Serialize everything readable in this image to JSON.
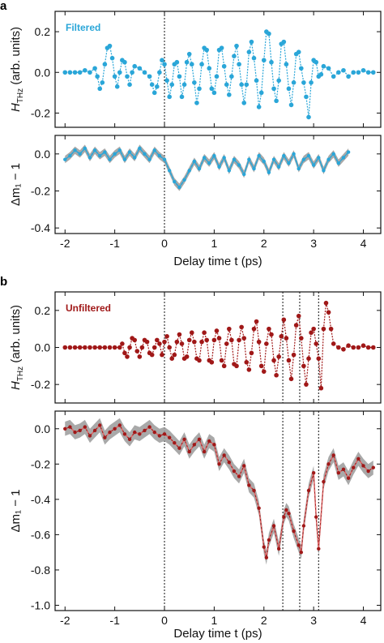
{
  "panel_labels": [
    "a",
    "b"
  ],
  "colors": {
    "filtered": "#2aa6d8",
    "unfiltered": "#a01818",
    "band": "#9a9a9a",
    "mid_line": "#e06a6a"
  },
  "chart_data": [
    {
      "type": "line",
      "panel": "a",
      "subplot": "top",
      "legend_text": "Filtered",
      "ylabel_main": "H",
      "ylabel_sub": "THz",
      "ylabel_rest": " (arb. units)",
      "xlim": [
        -2.2,
        4.35
      ],
      "ylim": [
        -0.27,
        0.3
      ],
      "yticks": [
        -0.2,
        0.0,
        0.2
      ],
      "ytick_labels": [
        "-0.2",
        "0.0",
        "0.2"
      ],
      "series": [
        {
          "x": [
            -2.0,
            -1.9,
            -1.8,
            -1.7,
            -1.6,
            -1.5,
            -1.4,
            -1.35,
            -1.3,
            -1.25,
            -1.2,
            -1.15,
            -1.1,
            -1.05,
            -1.0,
            -0.95,
            -0.9,
            -0.85,
            -0.8,
            -0.75,
            -0.7,
            -0.65,
            -0.6,
            -0.5,
            -0.4,
            -0.3,
            -0.25,
            -0.2,
            -0.15,
            -0.1,
            -0.05,
            0.0,
            0.05,
            0.1,
            0.15,
            0.2,
            0.25,
            0.3,
            0.35,
            0.4,
            0.45,
            0.5,
            0.55,
            0.6,
            0.65,
            0.7,
            0.75,
            0.8,
            0.85,
            0.9,
            0.95,
            1.0,
            1.05,
            1.1,
            1.15,
            1.2,
            1.25,
            1.3,
            1.35,
            1.4,
            1.45,
            1.5,
            1.55,
            1.6,
            1.65,
            1.7,
            1.75,
            1.8,
            1.85,
            1.9,
            1.95,
            2.0,
            2.05,
            2.1,
            2.15,
            2.2,
            2.25,
            2.3,
            2.35,
            2.4,
            2.45,
            2.5,
            2.55,
            2.6,
            2.65,
            2.7,
            2.75,
            2.8,
            2.85,
            2.9,
            2.95,
            3.0,
            3.05,
            3.1,
            3.15,
            3.2,
            3.3,
            3.4,
            3.5,
            3.6,
            3.7,
            3.8,
            3.9,
            4.0,
            4.1,
            4.2
          ],
          "y": [
            0.0,
            0.0,
            0.0,
            0.0,
            0.01,
            0.0,
            0.02,
            -0.02,
            -0.08,
            -0.05,
            0.04,
            0.12,
            0.13,
            0.07,
            -0.02,
            -0.07,
            0.0,
            0.06,
            0.05,
            -0.02,
            -0.06,
            0.0,
            0.03,
            0.02,
            0.0,
            -0.02,
            -0.06,
            -0.1,
            -0.07,
            0.0,
            0.06,
            0.04,
            -0.04,
            -0.12,
            -0.06,
            0.04,
            0.05,
            -0.02,
            -0.12,
            -0.06,
            0.05,
            0.09,
            0.04,
            -0.05,
            -0.15,
            -0.08,
            0.04,
            0.12,
            0.11,
            0.02,
            -0.08,
            -0.1,
            -0.02,
            0.11,
            0.12,
            0.03,
            -0.06,
            -0.11,
            -0.02,
            0.08,
            0.13,
            0.04,
            -0.06,
            -0.15,
            -0.06,
            0.1,
            0.15,
            0.07,
            -0.04,
            -0.17,
            -0.1,
            0.06,
            0.2,
            0.19,
            0.05,
            -0.08,
            -0.14,
            -0.04,
            0.14,
            0.15,
            0.04,
            -0.08,
            -0.16,
            -0.05,
            0.09,
            0.1,
            0.02,
            -0.05,
            -0.12,
            -0.22,
            -0.05,
            0.06,
            0.05,
            -0.02,
            -0.01,
            0.03,
            0.02,
            -0.02,
            0.0,
            0.01,
            -0.02,
            0.0,
            0.0,
            0.01,
            0.0,
            0.0
          ]
        }
      ]
    },
    {
      "type": "line",
      "panel": "a",
      "subplot": "bottom",
      "ylabel": "Δm₁ − 1",
      "xlabel": "Delay time t (ps)",
      "xlim": [
        -2.2,
        4.35
      ],
      "ylim": [
        -0.43,
        0.1
      ],
      "yticks": [
        -0.4,
        -0.2,
        0.0
      ],
      "ytick_labels": [
        "-0.4",
        "-0.2",
        "0.0"
      ],
      "xticks": [
        -2,
        -1,
        0,
        1,
        2,
        3,
        4
      ],
      "xtick_labels": [
        "-2",
        "-1",
        "0",
        "1",
        "2",
        "3",
        "4"
      ],
      "band_halfwidth": 0.02,
      "series": [
        {
          "x": [
            -2.0,
            -1.9,
            -1.8,
            -1.7,
            -1.6,
            -1.5,
            -1.4,
            -1.3,
            -1.2,
            -1.1,
            -1.0,
            -0.9,
            -0.8,
            -0.7,
            -0.6,
            -0.5,
            -0.4,
            -0.3,
            -0.2,
            -0.1,
            0.0,
            0.1,
            0.2,
            0.3,
            0.4,
            0.5,
            0.6,
            0.7,
            0.8,
            0.9,
            1.0,
            1.1,
            1.2,
            1.3,
            1.4,
            1.5,
            1.6,
            1.7,
            1.8,
            1.9,
            2.0,
            2.1,
            2.2,
            2.3,
            2.4,
            2.5,
            2.6,
            2.7,
            2.8,
            2.9,
            3.0,
            3.1,
            3.2,
            3.3,
            3.4,
            3.5,
            3.6,
            3.7
          ],
          "y": [
            -0.03,
            -0.01,
            0.02,
            0.0,
            0.03,
            -0.02,
            0.02,
            -0.01,
            0.01,
            -0.03,
            0.0,
            0.02,
            -0.03,
            0.01,
            -0.02,
            0.03,
            0.0,
            -0.03,
            0.02,
            -0.01,
            -0.03,
            -0.09,
            -0.15,
            -0.18,
            -0.14,
            -0.09,
            -0.04,
            -0.08,
            -0.02,
            -0.05,
            -0.01,
            -0.07,
            -0.02,
            -0.09,
            -0.03,
            -0.06,
            -0.11,
            -0.03,
            -0.08,
            -0.01,
            -0.04,
            -0.1,
            -0.03,
            -0.07,
            -0.01,
            -0.05,
            0.0,
            -0.08,
            -0.03,
            -0.01,
            -0.06,
            -0.02,
            -0.09,
            -0.03,
            0.0,
            -0.05,
            -0.02,
            0.01
          ]
        }
      ]
    },
    {
      "type": "line",
      "panel": "b",
      "subplot": "top",
      "legend_text": "Unfiltered",
      "ylabel_main": "H",
      "ylabel_sub": "THz",
      "ylabel_rest": " (arb. units)",
      "xlim": [
        -2.2,
        4.35
      ],
      "ylim": [
        -0.3,
        0.3
      ],
      "yticks": [
        -0.2,
        0.0,
        0.2
      ],
      "ytick_labels": [
        "-0.2",
        "0.0",
        "0.2"
      ],
      "vlines": [
        0.0,
        2.38,
        2.72,
        3.1
      ],
      "series": [
        {
          "x": [
            -2.0,
            -1.9,
            -1.8,
            -1.7,
            -1.6,
            -1.5,
            -1.4,
            -1.3,
            -1.2,
            -1.1,
            -1.0,
            -0.9,
            -0.85,
            -0.8,
            -0.75,
            -0.7,
            -0.65,
            -0.6,
            -0.55,
            -0.5,
            -0.45,
            -0.4,
            -0.35,
            -0.3,
            -0.25,
            -0.2,
            -0.15,
            -0.1,
            -0.05,
            0.0,
            0.05,
            0.1,
            0.15,
            0.2,
            0.25,
            0.3,
            0.35,
            0.4,
            0.45,
            0.5,
            0.55,
            0.6,
            0.65,
            0.7,
            0.75,
            0.8,
            0.85,
            0.9,
            0.95,
            1.0,
            1.05,
            1.1,
            1.15,
            1.2,
            1.25,
            1.3,
            1.35,
            1.4,
            1.45,
            1.5,
            1.55,
            1.6,
            1.65,
            1.7,
            1.75,
            1.8,
            1.85,
            1.9,
            1.95,
            2.0,
            2.05,
            2.1,
            2.15,
            2.2,
            2.25,
            2.3,
            2.35,
            2.4,
            2.45,
            2.5,
            2.55,
            2.6,
            2.65,
            2.7,
            2.75,
            2.8,
            2.85,
            2.9,
            2.95,
            3.0,
            3.05,
            3.1,
            3.15,
            3.2,
            3.25,
            3.3,
            3.35,
            3.4,
            3.5,
            3.6,
            3.7,
            3.8,
            3.9,
            4.0,
            4.1,
            4.2
          ],
          "y": [
            0.0,
            0.0,
            0.0,
            0.0,
            0.0,
            0.0,
            0.0,
            0.0,
            0.0,
            0.0,
            0.0,
            0.0,
            0.02,
            -0.03,
            -0.05,
            0.0,
            0.05,
            0.04,
            -0.02,
            -0.05,
            0.0,
            0.04,
            0.03,
            -0.03,
            -0.04,
            0.0,
            0.04,
            0.02,
            -0.04,
            0.03,
            0.06,
            0.0,
            -0.06,
            -0.04,
            0.03,
            0.07,
            0.02,
            -0.06,
            -0.05,
            0.04,
            0.08,
            0.03,
            -0.06,
            -0.07,
            0.03,
            0.08,
            0.04,
            -0.07,
            -0.08,
            0.04,
            0.09,
            0.05,
            -0.07,
            -0.1,
            0.02,
            0.1,
            0.04,
            -0.09,
            -0.1,
            0.04,
            0.11,
            0.05,
            -0.08,
            -0.12,
            -0.03,
            0.1,
            0.14,
            0.03,
            -0.1,
            -0.13,
            0.02,
            0.1,
            0.07,
            -0.07,
            -0.15,
            -0.05,
            0.06,
            0.15,
            0.05,
            -0.07,
            -0.17,
            -0.04,
            0.12,
            0.17,
            0.05,
            -0.1,
            -0.2,
            -0.06,
            0.08,
            0.1,
            0.02,
            -0.06,
            -0.22,
            0.1,
            0.24,
            0.19,
            0.1,
            0.02,
            0.0,
            -0.01,
            0.01,
            0.0,
            0.0,
            0.01,
            0.0,
            0.0
          ]
        }
      ]
    },
    {
      "type": "line",
      "panel": "b",
      "subplot": "bottom",
      "ylabel": "Δm₁ − 1",
      "xlabel": "Delay time t (ps)",
      "xlim": [
        -2.2,
        4.35
      ],
      "ylim": [
        -1.03,
        0.1
      ],
      "yticks": [
        -1.0,
        -0.8,
        -0.6,
        -0.4,
        -0.2,
        0.0
      ],
      "ytick_labels": [
        "-1.0",
        "-0.8",
        "-0.6",
        "-0.4",
        "-0.2",
        "0.0"
      ],
      "xticks": [
        -2,
        -1,
        0,
        1,
        2,
        3,
        4
      ],
      "xtick_labels": [
        "-2",
        "-1",
        "0",
        "1",
        "2",
        "3",
        "4"
      ],
      "vlines": [
        0.0,
        2.38,
        2.72,
        3.1
      ],
      "band_halfwidth": 0.04,
      "series": [
        {
          "x": [
            -2.0,
            -1.9,
            -1.8,
            -1.7,
            -1.6,
            -1.5,
            -1.4,
            -1.3,
            -1.2,
            -1.1,
            -1.0,
            -0.9,
            -0.8,
            -0.7,
            -0.6,
            -0.5,
            -0.4,
            -0.3,
            -0.2,
            -0.1,
            0.0,
            0.1,
            0.2,
            0.3,
            0.4,
            0.5,
            0.6,
            0.7,
            0.8,
            0.9,
            1.0,
            1.1,
            1.2,
            1.3,
            1.4,
            1.5,
            1.6,
            1.7,
            1.8,
            1.9,
            2.0,
            2.05,
            2.1,
            2.2,
            2.3,
            2.4,
            2.45,
            2.5,
            2.6,
            2.7,
            2.75,
            2.8,
            2.9,
            3.0,
            3.05,
            3.1,
            3.2,
            3.3,
            3.4,
            3.5,
            3.6,
            3.7,
            3.8,
            3.9,
            4.0,
            4.1,
            4.2
          ],
          "y": [
            0.0,
            0.01,
            -0.02,
            -0.01,
            0.01,
            -0.04,
            -0.01,
            0.02,
            -0.05,
            -0.02,
            0.0,
            0.02,
            -0.03,
            -0.06,
            -0.02,
            -0.03,
            -0.01,
            0.01,
            -0.02,
            -0.04,
            -0.03,
            -0.05,
            -0.08,
            -0.11,
            -0.06,
            -0.13,
            -0.09,
            -0.06,
            -0.13,
            -0.07,
            -0.09,
            -0.2,
            -0.15,
            -0.19,
            -0.24,
            -0.27,
            -0.21,
            -0.32,
            -0.35,
            -0.45,
            -0.67,
            -0.73,
            -0.63,
            -0.55,
            -0.68,
            -0.5,
            -0.46,
            -0.48,
            -0.58,
            -0.66,
            -0.7,
            -0.55,
            -0.35,
            -0.25,
            -0.5,
            -0.68,
            -0.3,
            -0.2,
            -0.15,
            -0.25,
            -0.23,
            -0.28,
            -0.22,
            -0.17,
            -0.21,
            -0.24,
            -0.22
          ]
        }
      ]
    }
  ]
}
